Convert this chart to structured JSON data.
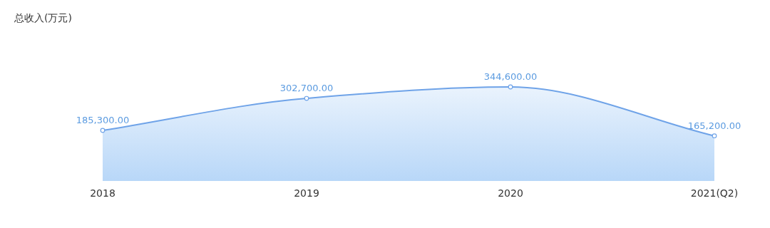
{
  "chart_data": {
    "type": "area",
    "annotations": [
      "总收入(万元)"
    ],
    "categories": [
      "2018",
      "2019",
      "2020",
      "2021(Q2)"
    ],
    "values": [
      185300,
      302700,
      344600,
      165200
    ],
    "value_labels": [
      "185,300.00",
      "302,700.00",
      "344,600.00",
      "165,200.00"
    ],
    "color": "#6fa3e8",
    "marker": "circle"
  }
}
